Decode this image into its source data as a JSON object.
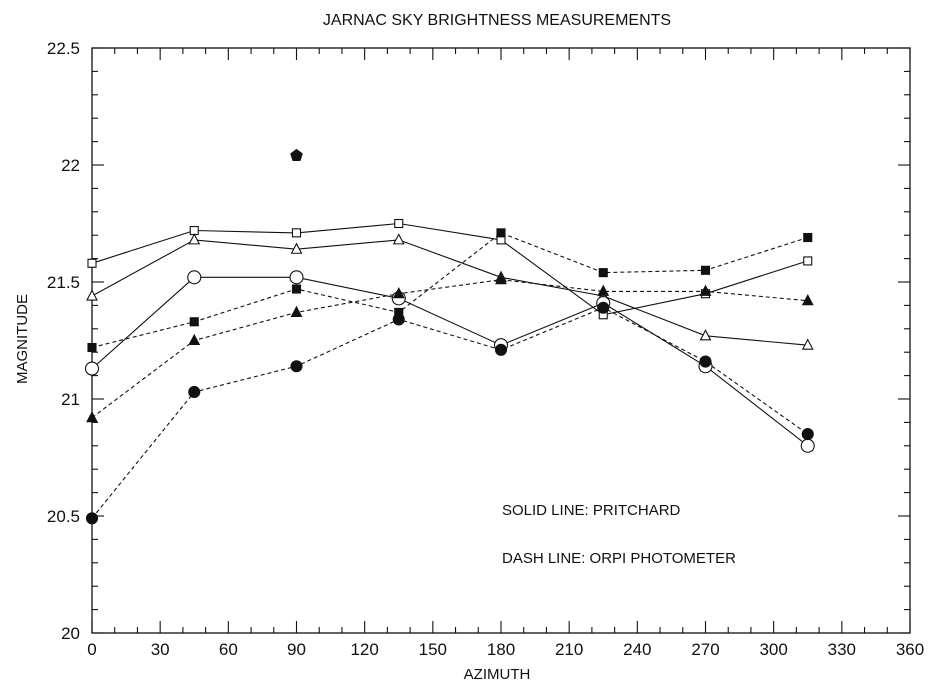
{
  "chart_data": {
    "type": "line",
    "title": "JARNAC SKY BRIGHTNESS MEASUREMENTS",
    "xlabel": "AZIMUTH",
    "ylabel": "MAGNITUDE",
    "xlim": [
      0,
      360
    ],
    "ylim": [
      20,
      22.5
    ],
    "x_ticks": [
      "0",
      "30",
      "60",
      "90",
      "120",
      "150",
      "180",
      "210",
      "240",
      "270",
      "300",
      "330",
      "360"
    ],
    "y_ticks": [
      "20",
      "20.5",
      "21",
      "21.5",
      "22",
      "22.5"
    ],
    "grid": false,
    "annotations": [
      "SOLID LINE: PRITCHARD",
      "DASH LINE: ORPI PHOTOMETER"
    ],
    "series": [
      {
        "line": "solid",
        "marker": "open-square",
        "x": [
          0,
          45,
          90,
          135,
          180,
          225,
          270,
          315
        ],
        "y": [
          21.58,
          21.72,
          21.71,
          21.75,
          21.68,
          21.36,
          21.45,
          21.59
        ]
      },
      {
        "line": "solid",
        "marker": "open-triangle",
        "x": [
          0,
          45,
          90,
          135,
          180,
          225,
          270,
          315
        ],
        "y": [
          21.44,
          21.68,
          21.64,
          21.68,
          21.52,
          21.44,
          21.27,
          21.23
        ]
      },
      {
        "line": "solid",
        "marker": "open-circle",
        "x": [
          0,
          45,
          90,
          135,
          180,
          225,
          270,
          315
        ],
        "y": [
          21.13,
          21.52,
          21.52,
          21.43,
          21.23,
          21.41,
          21.14,
          20.8
        ]
      },
      {
        "line": "dash",
        "marker": "filled-square",
        "x": [
          0,
          45,
          90,
          135,
          180,
          225,
          270,
          315
        ],
        "y": [
          21.22,
          21.33,
          21.47,
          21.37,
          21.71,
          21.54,
          21.55,
          21.69
        ]
      },
      {
        "line": "dash",
        "marker": "filled-triangle",
        "x": [
          0,
          45,
          90,
          135,
          180,
          225,
          270,
          315
        ],
        "y": [
          20.92,
          21.25,
          21.37,
          21.45,
          21.51,
          21.46,
          21.46,
          21.42
        ]
      },
      {
        "line": "dash",
        "marker": "filled-circle",
        "x": [
          0,
          45,
          90,
          135,
          180,
          225,
          270,
          315
        ],
        "y": [
          20.49,
          21.03,
          21.14,
          21.34,
          21.21,
          21.39,
          21.16,
          20.85
        ]
      }
    ],
    "outlier": {
      "marker": "filled-pentagon",
      "x": 90,
      "y": 22.04
    }
  }
}
